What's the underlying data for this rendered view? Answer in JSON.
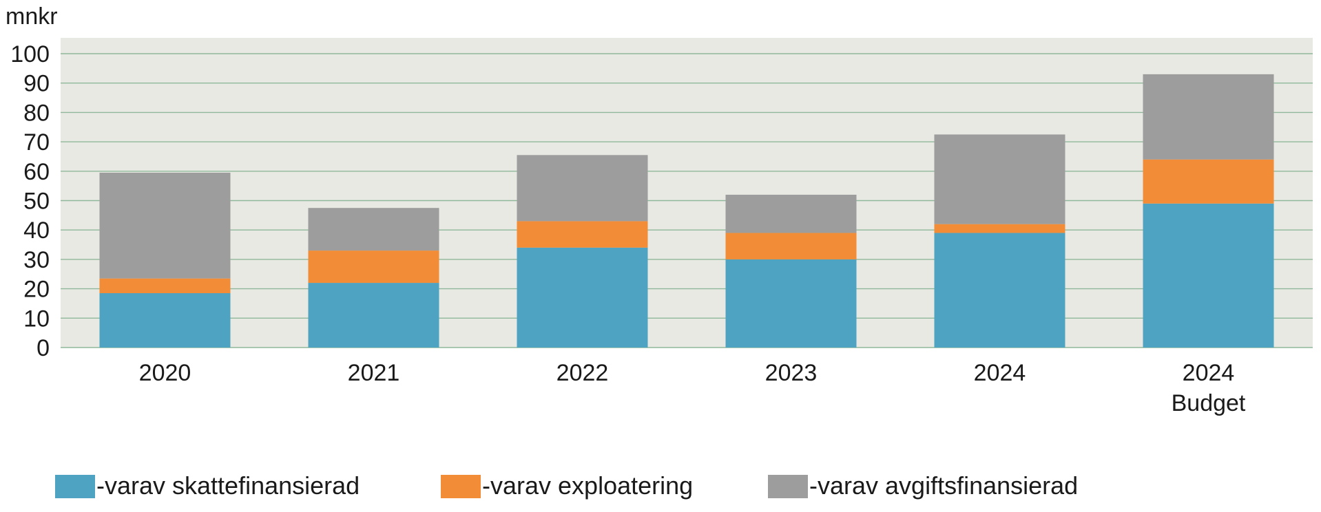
{
  "chart_data": {
    "type": "bar",
    "stacked": true,
    "ylabel": "mnkr",
    "ylim": [
      0,
      100
    ],
    "yticks": [
      0,
      10,
      20,
      30,
      40,
      50,
      60,
      70,
      80,
      90,
      100
    ],
    "grid": true,
    "legend_position": "bottom",
    "categories": [
      [
        "2020"
      ],
      [
        "2021"
      ],
      [
        "2022"
      ],
      [
        "2023"
      ],
      [
        "2024"
      ],
      [
        "2024",
        "Budget"
      ]
    ],
    "series": [
      {
        "name": "-varav skattefinansierad",
        "color": "#4fa3c2",
        "values": [
          18.5,
          22,
          34,
          30,
          39,
          49
        ]
      },
      {
        "name": "-varav exploatering",
        "color": "#f28c36",
        "values": [
          5,
          11,
          9,
          9,
          3,
          15
        ]
      },
      {
        "name": "-varav avgiftsfinansierad",
        "color": "#9d9d9d",
        "values": [
          36,
          14.5,
          22.5,
          13,
          30.5,
          29
        ]
      }
    ],
    "plot_background": "#e8e9e3",
    "grid_color": "#8fb89a"
  }
}
